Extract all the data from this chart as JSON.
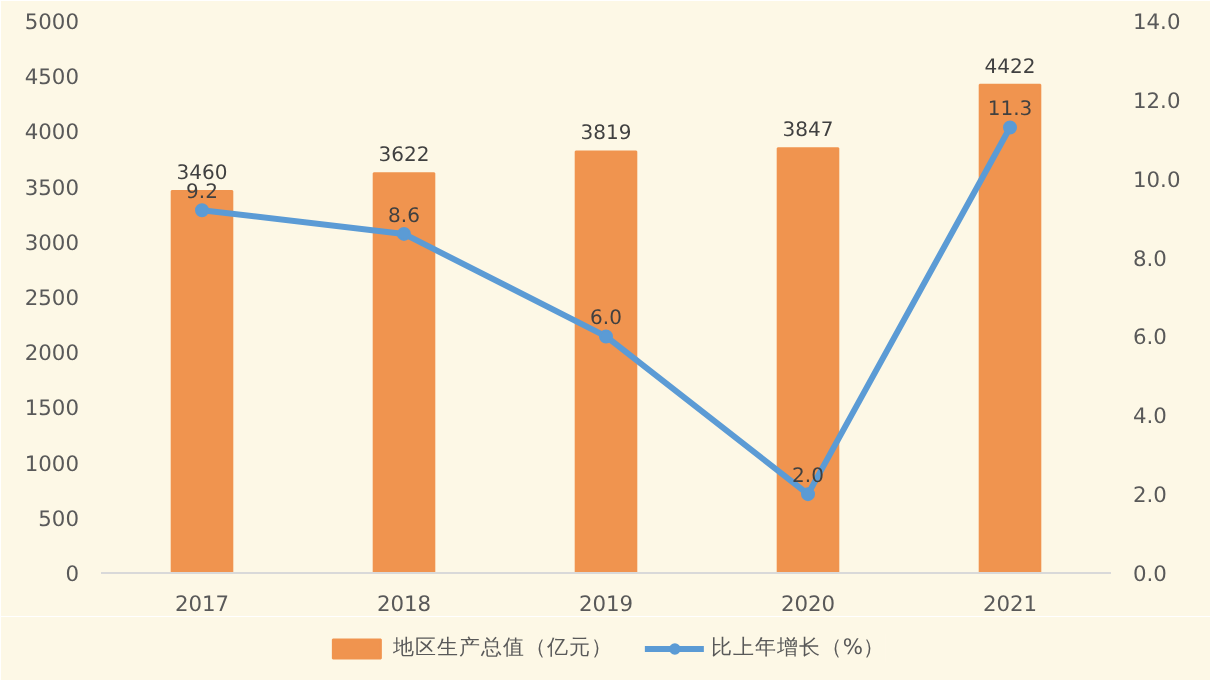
{
  "chart_data": {
    "type": "bar",
    "categories": [
      "2017",
      "2018",
      "2019",
      "2020",
      "2021"
    ],
    "series": [
      {
        "name": "地区生产总值（亿元）",
        "color": "#f0944f",
        "values": [
          3460,
          3622,
          3819,
          3847,
          4422
        ]
      },
      {
        "name": "比上年增长（%）",
        "type": "line",
        "axis": "y2",
        "color": "#5b9bd5",
        "values": [
          9.2,
          8.6,
          6.0,
          2.0,
          11.3
        ],
        "value_labels": [
          "9.2",
          "8.6",
          "6.0",
          "2.0",
          "11.3"
        ]
      }
    ],
    "data_labels": true,
    "ylim": [
      0,
      5000
    ],
    "yticks": [
      0,
      500,
      1000,
      1500,
      2000,
      2500,
      3000,
      3500,
      4000,
      4500,
      5000
    ],
    "y2lim": [
      0,
      14
    ],
    "y2ticks": [
      {
        "value": 0,
        "label": "0.0"
      },
      {
        "value": 2,
        "label": "2.0"
      },
      {
        "value": 4,
        "label": "4.0"
      },
      {
        "value": 6,
        "label": "6.0"
      },
      {
        "value": 8,
        "label": "8.0"
      },
      {
        "value": 10,
        "label": "10.0"
      },
      {
        "value": 12,
        "label": "12.0"
      },
      {
        "value": 14,
        "label": "14.0"
      }
    ],
    "legend": "bottom",
    "marker": "circle",
    "grid": false
  }
}
